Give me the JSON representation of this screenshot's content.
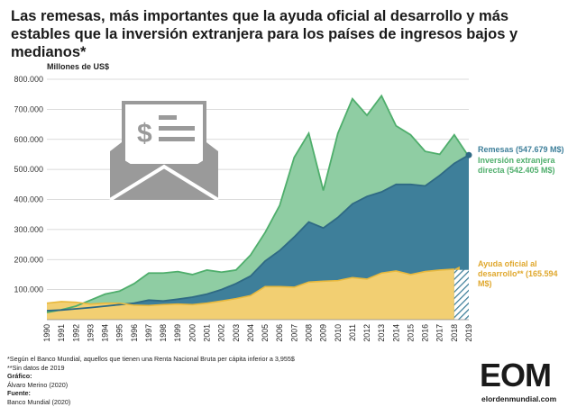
{
  "title": "Las remesas, más importantes que la ayuda oficial al desarrollo y más estables que la inversión extranjera para los países de ingresos bajos y medianos*",
  "colors": {
    "remesas": "#3e7f9a",
    "inversion": "#8fcda3",
    "inversion_line": "#4fae6c",
    "ayuda": "#f2cf72",
    "ayuda_line": "#e8b93d",
    "ayuda_text": "#e0a82e",
    "grid": "#cfcfcf",
    "envelope": "#9a9a9a"
  },
  "labels": {
    "remesas": "Remesas (547.679 M$)",
    "inversion": "Inversión extranjera directa (542.405 M$)",
    "ayuda": "Ayuda oficial al desarrollo** (165.594 M$)"
  },
  "notes": {
    "note1": "*Según el Banco Mundial, aquellos que tienen una Renta Nacional Bruta per cápita inferior a 3,955$",
    "note2": "**Sin datos de 2019",
    "grafico_label": "Gráfico:",
    "grafico_value": "Álvaro Merino (2020)",
    "fuente_label": "Fuente:",
    "fuente_value": "Banco Mundial (2020)"
  },
  "logo": {
    "text": "EOM",
    "site": "elordenmundial.com"
  },
  "icon": "envelope-money-icon",
  "chart_data": {
    "type": "area",
    "title": "Las remesas, más importantes que la ayuda oficial al desarrollo y más estables que la inversión extranjera para los países de ingresos bajos y medianos*",
    "ylabel": "Millones de US$",
    "xlabel": "",
    "ylim": [
      0,
      800000
    ],
    "yticks": [
      "100.000",
      "200.000",
      "300.000",
      "400.000",
      "500.000",
      "600.000",
      "700.000",
      "800.000"
    ],
    "grid": true,
    "x": [
      "1990",
      "1991",
      "1992",
      "1993",
      "1994",
      "1995",
      "1996",
      "1997",
      "1998",
      "1999",
      "2000",
      "2001",
      "2002",
      "2003",
      "2004",
      "2005",
      "2006",
      "2007",
      "2008",
      "2009",
      "2010",
      "2011",
      "2012",
      "2013",
      "2014",
      "2015",
      "2016",
      "2017",
      "2018",
      "2019"
    ],
    "series": [
      {
        "name": "Inversión extranjera directa",
        "values": [
          24000,
          33000,
          45000,
          65000,
          85000,
          95000,
          120000,
          155000,
          155000,
          160000,
          150000,
          165000,
          158000,
          165000,
          215000,
          290000,
          380000,
          540000,
          620000,
          430000,
          620000,
          735000,
          680000,
          745000,
          645000,
          615000,
          560000,
          550000,
          615000,
          542405
        ]
      },
      {
        "name": "Remesas",
        "values": [
          30000,
          32000,
          36000,
          40000,
          45000,
          50000,
          55000,
          65000,
          62000,
          68000,
          75000,
          85000,
          100000,
          120000,
          145000,
          195000,
          230000,
          275000,
          325000,
          305000,
          340000,
          385000,
          410000,
          425000,
          450000,
          450000,
          445000,
          480000,
          520000,
          547679
        ]
      },
      {
        "name": "Ayuda oficial al desarrollo",
        "values": [
          55000,
          60000,
          58000,
          52000,
          55000,
          55000,
          48000,
          47000,
          50000,
          52000,
          50000,
          55000,
          62000,
          70000,
          80000,
          110000,
          110000,
          108000,
          125000,
          128000,
          130000,
          140000,
          135000,
          155000,
          162000,
          150000,
          160000,
          165000,
          168000,
          165594
        ]
      }
    ]
  }
}
